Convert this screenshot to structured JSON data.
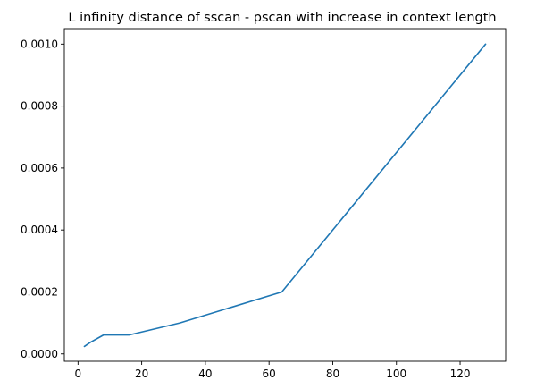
{
  "chart_data": {
    "type": "line",
    "title": "L infinity distance of sscan - pscan with increase in context length",
    "xlabel": "",
    "ylabel": "",
    "xlim": [
      -4.3,
      134.3
    ],
    "ylim": [
      -2.38e-05,
      0.00105
    ],
    "x_ticks": [
      0,
      20,
      40,
      60,
      80,
      100,
      120
    ],
    "x_tick_labels": [
      "0",
      "20",
      "40",
      "60",
      "80",
      "100",
      "120"
    ],
    "y_ticks": [
      0,
      0.0002,
      0.0004,
      0.0006,
      0.0008,
      0.001
    ],
    "y_tick_labels": [
      "0.0000",
      "0.0002",
      "0.0004",
      "0.0006",
      "0.0008",
      "0.0010"
    ],
    "grid": false,
    "legend": "none",
    "series": [
      {
        "color": "#1f77b4",
        "x": [
          2,
          4,
          8,
          16,
          32,
          64,
          128
        ],
        "y": [
          2.4e-05,
          3.8e-05,
          6.1e-05,
          6.1e-05,
          0.0001,
          0.0002,
          0.001
        ]
      }
    ]
  }
}
